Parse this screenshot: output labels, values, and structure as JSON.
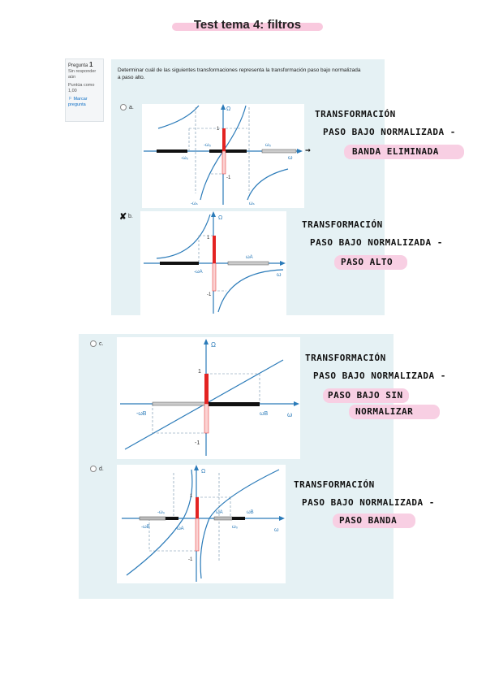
{
  "title": "Test tema 4: filtros",
  "info": {
    "label": "Pregunta",
    "number": "1",
    "status": "Sin responder aún",
    "score": "Puntúa como 1,00",
    "flag": "Marcar pregunta"
  },
  "question": "Determinar cuál de las siguientes transformaciones representa la transformación paso bajo normalizada a paso alto.",
  "options": [
    {
      "letter": "a.",
      "note1": "TRANSFORMACIÓN",
      "note2": "PASO BAJO NORMALIZADA -",
      "answer": "BANDA ELIMINADA"
    },
    {
      "letter": "b.",
      "note1": "TRANSFORMACIÓN",
      "note2": "PASO BAJO NORMALIZADA -",
      "answer": "PASO ALTO"
    },
    {
      "letter": "c.",
      "note1": "TRANSFORMACIÓN",
      "note2": "PASO BAJO NORMALIZADA -",
      "answer": "PASO BAJO SIN",
      "answer2": "NORMALIZAR"
    },
    {
      "letter": "d.",
      "note1": "TRANSFORMACIÓN",
      "note2": "PASO BAJO NORMALIZADA -",
      "answer": "PASO BANDA"
    }
  ],
  "selected_mark": "✘",
  "graph_labels": {
    "omega_cap": "Ω",
    "omega": "ω",
    "one": "1",
    "minus_one": "-1",
    "a_w0": "-ω₀",
    "a_w0b": "ω₀",
    "a_ws": "-ωₛ",
    "a_ws2": "ωₛ",
    "a_w0n": "-ω₀",
    "b_wa": "ωA",
    "b_nwa": "-ωA",
    "c_nwb": "-ωB",
    "c_wb": "ωB",
    "d_wa": "ωA",
    "d_nwa": "-ωA",
    "d_wb": "ωB",
    "d_nwb": "-ωB",
    "d_nw0": "-ω₀",
    "d_w0": "ω₀"
  },
  "colors": {
    "panel": "#e5f1f4",
    "curve": "#2b7bb9",
    "red": "#e32322",
    "pink": "#f8cfe3"
  }
}
